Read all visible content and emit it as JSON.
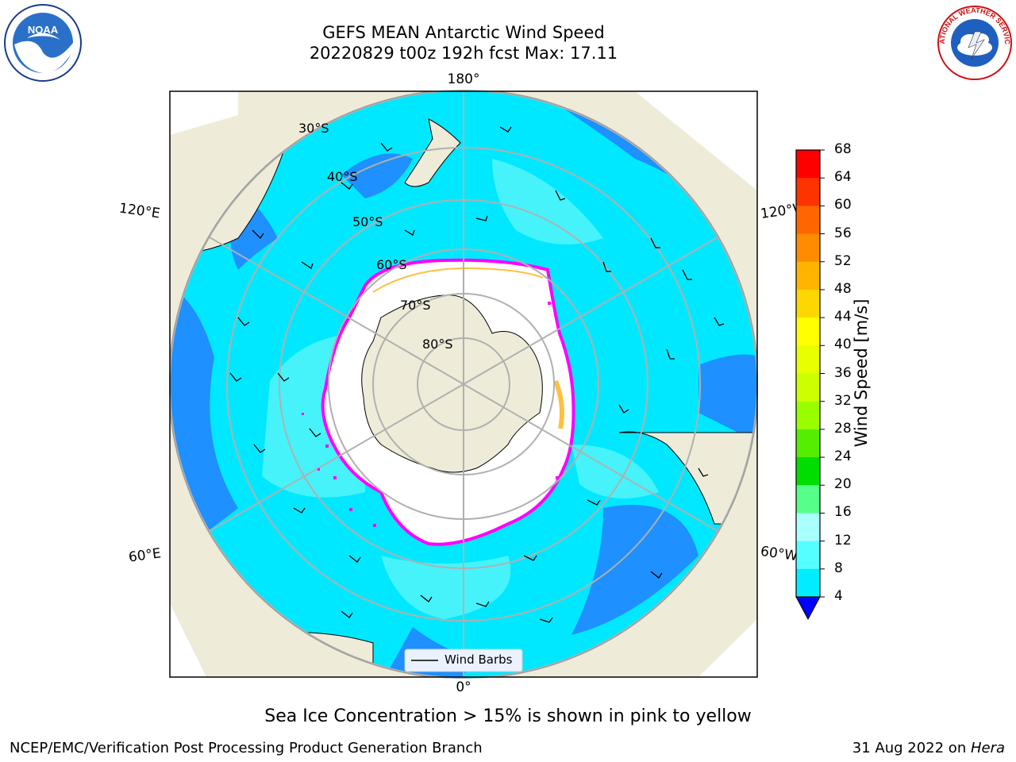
{
  "header": {
    "title_line1": "GEFS MEAN Antarctic Wind Speed",
    "title_line2": "20220829 t00z 192h fcst   Max: 17.11"
  },
  "logos": {
    "left": {
      "icon": "noaa-logo",
      "text": "NOAA"
    },
    "right": {
      "icon": "national-weather-service-logo",
      "text": "NATIONAL WEATHER SERVICE"
    }
  },
  "map": {
    "longitude_labels": {
      "top": "180°",
      "bottom": "0°",
      "upper_left": "120°E",
      "upper_right": "120°W",
      "lower_left": "60°E",
      "lower_right": "60°W"
    },
    "latitude_labels": [
      "30°S",
      "40°S",
      "50°S",
      "60°S",
      "70°S",
      "80°S"
    ],
    "legend_label": "Wind Barbs",
    "colors": {
      "land": "#eeecd9",
      "ocean_4_8": "#1e90ff",
      "ocean_8_12": "#00e8ff",
      "ocean_12_16": "#4ef4fa",
      "sea_ice_edge": "#ff00ff",
      "sea_ice_inner": "#ffc040"
    }
  },
  "colorbar": {
    "title": "Wind Speed [m/s]",
    "ticks": [
      "68",
      "64",
      "60",
      "56",
      "52",
      "48",
      "44",
      "40",
      "36",
      "32",
      "28",
      "24",
      "20",
      "16",
      "12",
      "8",
      "4"
    ],
    "colors": [
      "#ff0000",
      "#ff3300",
      "#ff6600",
      "#ff8c00",
      "#ffb400",
      "#ffd700",
      "#ffff00",
      "#e8ff00",
      "#ccff00",
      "#99ff00",
      "#55ee00",
      "#00dd00",
      "#55ff88",
      "#aaffff",
      "#55ffff",
      "#00eeff",
      "#0077ff"
    ],
    "under_color": "#0000ff"
  },
  "footer": {
    "caption": "Sea Ice Concentration > 15% is shown in pink to yellow",
    "left_text": "NCEP/EMC/Verification Post Processing Product Generation Branch",
    "right_date": "31 Aug 2022 on ",
    "right_machine": "Hera"
  }
}
